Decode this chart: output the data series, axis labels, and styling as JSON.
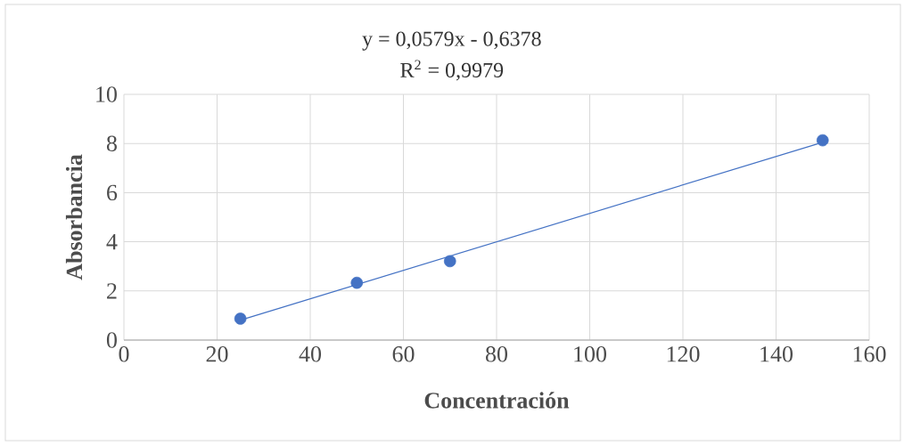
{
  "chart_data": {
    "type": "scatter",
    "xlabel": "Concentración",
    "ylabel": "Absorbancia",
    "annotations": [
      "y = 0,0579x - 0,6378",
      "R$^{2}$ = 0,9979"
    ],
    "xlim": [
      0,
      160
    ],
    "xticks": [
      0,
      20,
      40,
      60,
      80,
      100,
      120,
      140,
      160
    ],
    "ylim": [
      0,
      10
    ],
    "yticks": [
      0,
      2,
      4,
      6,
      8,
      10
    ],
    "grid": true,
    "series": [
      {
        "color": "#4472c4",
        "marker": "circle",
        "x": [
          25,
          50,
          70,
          150
        ],
        "values": [
          0.87,
          2.33,
          3.21,
          8.13
        ]
      },
      {
        "type": "line",
        "color": "#4472c4",
        "marker": "none",
        "line_style": "solid",
        "x": [
          25,
          150
        ],
        "values": [
          0.81,
          8.05
        ]
      }
    ]
  }
}
